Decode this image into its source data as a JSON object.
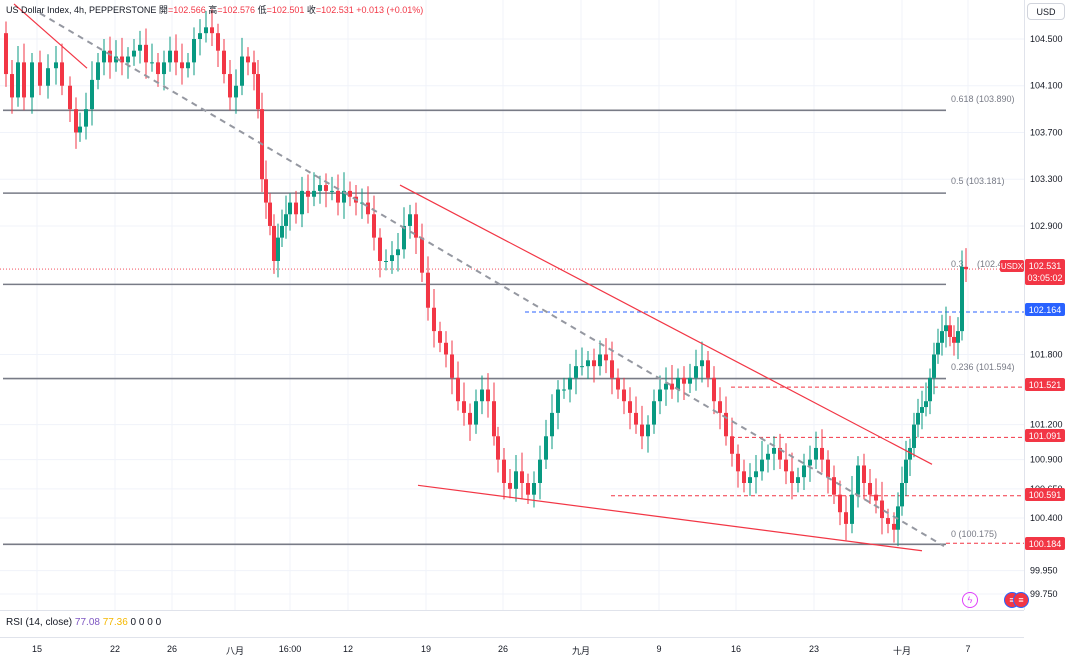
{
  "header": {
    "symbol_title": "US Dollar Index, 4h, PEPPERSTONE",
    "open_label": "開",
    "open_value": "=102.566",
    "high_label": "高",
    "high_value": "=102.576",
    "low_label": "低",
    "low_value": "=102.501",
    "close_label": "收",
    "close_value": "=102.531",
    "change": "+0.013 (+0.01%)"
  },
  "currency_button": "USD",
  "rsi": {
    "label": "RSI (14, close)",
    "value1": "77.08",
    "value2": "77.36",
    "extras": [
      "0",
      "0",
      "0",
      "0"
    ]
  },
  "price_tags": {
    "symbol": "USDX",
    "last_price": "102.531",
    "countdown": "03:05:02",
    "blue_level": "102.164",
    "red_levels": [
      "101.521",
      "101.091",
      "100.591",
      "100.184"
    ]
  },
  "fib_labels": [
    "0.618 (103.890)",
    "0.5 (103.181)",
    "0.3",
    "(102.4",
    "0.236 (101.594)",
    "0 (100.175)"
  ],
  "colors": {
    "up": "#089981",
    "down": "#f23645",
    "trendline": "#f23645",
    "fib_line": "#787b86",
    "dashed_guide": "#9598a1",
    "blue_level": "#2962ff",
    "red_level": "#f23645",
    "rsi_line": "#7e57c2",
    "rsi_signal": "#f5b800"
  },
  "chart_data": {
    "type": "candlestick",
    "title": "US Dollar Index, 4h, PEPPERSTONE",
    "y_ticks": [
      104.5,
      104.1,
      103.7,
      103.3,
      102.9,
      101.8,
      101.2,
      100.9,
      100.65,
      100.4,
      99.95,
      99.75
    ],
    "y_tick_labels": [
      "104.500",
      "104.100",
      "103.700",
      "103.300",
      "102.900",
      "101.800",
      "101.200",
      "100.900",
      "100.650",
      "100.400",
      "99.950",
      "99.750"
    ],
    "ylim": [
      99.6,
      104.85
    ],
    "x_tick_labels": [
      "15",
      "22",
      "26",
      "八月",
      "16:00",
      "12",
      "19",
      "26",
      "九月",
      "9",
      "16",
      "23",
      "十月",
      "7"
    ],
    "fib_levels": [
      {
        "ratio": "0.618",
        "price": 103.89
      },
      {
        "ratio": "0.5",
        "price": 103.181
      },
      {
        "ratio": "0.382",
        "price": 102.4
      },
      {
        "ratio": "0.236",
        "price": 101.594
      },
      {
        "ratio": "0",
        "price": 100.175
      }
    ],
    "horizontal_levels": [
      102.164,
      101.521,
      101.091,
      100.591,
      100.184
    ],
    "last_price": 102.531,
    "close_path": [
      [
        0,
        104.55
      ],
      [
        6,
        104.2
      ],
      [
        12,
        104.0
      ],
      [
        18,
        104.3
      ],
      [
        24,
        104.0
      ],
      [
        32,
        104.3
      ],
      [
        40,
        104.1
      ],
      [
        48,
        104.25
      ],
      [
        56,
        104.3
      ],
      [
        62,
        104.1
      ],
      [
        70,
        103.9
      ],
      [
        76,
        103.7
      ],
      [
        80,
        103.75
      ],
      [
        86,
        103.9
      ],
      [
        92,
        104.15
      ],
      [
        98,
        104.3
      ],
      [
        104,
        104.4
      ],
      [
        110,
        104.3
      ],
      [
        116,
        104.35
      ],
      [
        122,
        104.3
      ],
      [
        128,
        104.35
      ],
      [
        134,
        104.4
      ],
      [
        140,
        104.45
      ],
      [
        146,
        104.3
      ],
      [
        152,
        104.3
      ],
      [
        158,
        104.2
      ],
      [
        164,
        104.3
      ],
      [
        170,
        104.4
      ],
      [
        176,
        104.3
      ],
      [
        182,
        104.25
      ],
      [
        188,
        104.3
      ],
      [
        194,
        104.5
      ],
      [
        200,
        104.55
      ],
      [
        206,
        104.6
      ],
      [
        212,
        104.55
      ],
      [
        218,
        104.4
      ],
      [
        224,
        104.2
      ],
      [
        230,
        104.0
      ],
      [
        236,
        104.1
      ],
      [
        242,
        104.35
      ],
      [
        248,
        104.3
      ],
      [
        254,
        104.2
      ],
      [
        258,
        103.9
      ],
      [
        262,
        103.3
      ],
      [
        266,
        103.1
      ],
      [
        270,
        102.9
      ],
      [
        274,
        102.6
      ],
      [
        278,
        102.8
      ],
      [
        282,
        102.9
      ],
      [
        286,
        103.0
      ],
      [
        290,
        103.1
      ],
      [
        296,
        103.0
      ],
      [
        302,
        103.2
      ],
      [
        308,
        103.15
      ],
      [
        314,
        103.2
      ],
      [
        320,
        103.25
      ],
      [
        326,
        103.2
      ],
      [
        332,
        103.2
      ],
      [
        338,
        103.1
      ],
      [
        344,
        103.2
      ],
      [
        350,
        103.15
      ],
      [
        356,
        103.1
      ],
      [
        362,
        103.1
      ],
      [
        368,
        103.0
      ],
      [
        374,
        102.8
      ],
      [
        380,
        102.6
      ],
      [
        386,
        102.6
      ],
      [
        392,
        102.65
      ],
      [
        398,
        102.7
      ],
      [
        404,
        102.9
      ],
      [
        410,
        103.0
      ],
      [
        416,
        102.8
      ],
      [
        422,
        102.5
      ],
      [
        428,
        102.2
      ],
      [
        434,
        102.0
      ],
      [
        440,
        101.9
      ],
      [
        446,
        101.8
      ],
      [
        452,
        101.6
      ],
      [
        458,
        101.4
      ],
      [
        464,
        101.3
      ],
      [
        470,
        101.2
      ],
      [
        476,
        101.4
      ],
      [
        482,
        101.5
      ],
      [
        488,
        101.4
      ],
      [
        494,
        101.1
      ],
      [
        498,
        100.9
      ],
      [
        504,
        100.7
      ],
      [
        510,
        100.65
      ],
      [
        516,
        100.8
      ],
      [
        522,
        100.7
      ],
      [
        528,
        100.6
      ],
      [
        534,
        100.7
      ],
      [
        540,
        100.9
      ],
      [
        546,
        101.1
      ],
      [
        552,
        101.3
      ],
      [
        558,
        101.5
      ],
      [
        564,
        101.5
      ],
      [
        570,
        101.6
      ],
      [
        576,
        101.7
      ],
      [
        582,
        101.7
      ],
      [
        588,
        101.75
      ],
      [
        594,
        101.7
      ],
      [
        600,
        101.8
      ],
      [
        606,
        101.75
      ],
      [
        612,
        101.6
      ],
      [
        618,
        101.5
      ],
      [
        624,
        101.4
      ],
      [
        630,
        101.3
      ],
      [
        636,
        101.2
      ],
      [
        642,
        101.1
      ],
      [
        648,
        101.2
      ],
      [
        654,
        101.4
      ],
      [
        660,
        101.5
      ],
      [
        666,
        101.55
      ],
      [
        672,
        101.5
      ],
      [
        678,
        101.6
      ],
      [
        684,
        101.55
      ],
      [
        690,
        101.6
      ],
      [
        696,
        101.7
      ],
      [
        702,
        101.75
      ],
      [
        708,
        101.6
      ],
      [
        714,
        101.4
      ],
      [
        720,
        101.3
      ],
      [
        726,
        101.1
      ],
      [
        732,
        100.95
      ],
      [
        738,
        100.8
      ],
      [
        744,
        100.7
      ],
      [
        750,
        100.75
      ],
      [
        756,
        100.8
      ],
      [
        762,
        100.9
      ],
      [
        768,
        100.95
      ],
      [
        774,
        101.0
      ],
      [
        780,
        100.9
      ],
      [
        786,
        100.8
      ],
      [
        792,
        100.7
      ],
      [
        798,
        100.75
      ],
      [
        804,
        100.85
      ],
      [
        810,
        100.9
      ],
      [
        816,
        101.0
      ],
      [
        822,
        100.9
      ],
      [
        828,
        100.75
      ],
      [
        834,
        100.6
      ],
      [
        840,
        100.45
      ],
      [
        846,
        100.35
      ],
      [
        852,
        100.6
      ],
      [
        858,
        100.85
      ],
      [
        864,
        100.7
      ],
      [
        870,
        100.6
      ],
      [
        876,
        100.55
      ],
      [
        882,
        100.4
      ],
      [
        888,
        100.35
      ],
      [
        894,
        100.3
      ],
      [
        898,
        100.5
      ],
      [
        902,
        100.7
      ],
      [
        906,
        100.9
      ],
      [
        910,
        101.0
      ],
      [
        914,
        101.2
      ],
      [
        918,
        101.3
      ],
      [
        922,
        101.35
      ],
      [
        926,
        101.4
      ],
      [
        930,
        101.6
      ],
      [
        934,
        101.8
      ],
      [
        938,
        101.9
      ],
      [
        942,
        102.0
      ],
      [
        946,
        102.05
      ],
      [
        950,
        101.95
      ],
      [
        954,
        101.9
      ],
      [
        958,
        102.0
      ],
      [
        962,
        102.55
      ],
      [
        966,
        102.53
      ]
    ],
    "trendlines": [
      {
        "from": [
          14,
          104.8
        ],
        "to": [
          87,
          104.25
        ],
        "style": "solid"
      },
      {
        "from": [
          400,
          103.25
        ],
        "to": [
          932,
          100.86
        ],
        "style": "solid"
      },
      {
        "from": [
          418,
          100.68
        ],
        "to": [
          922,
          100.12
        ],
        "style": "solid"
      },
      {
        "from": [
          40,
          104.72
        ],
        "to": [
          944,
          100.16
        ],
        "style": "dashed"
      }
    ]
  }
}
